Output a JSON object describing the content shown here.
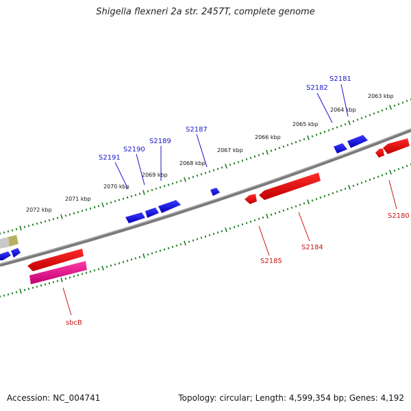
{
  "title": "Shigella flexneri 2a str. 2457T, complete genome",
  "footer": {
    "accession": "Accession: NC_004741",
    "stats": "Topology: circular; Length: 4,599,354 bp; Genes: 4,192"
  },
  "colors": {
    "plus_strand_gene": "#1010e0",
    "minus_strand_gene": "#e01010",
    "highlight_gene": "#e0108c",
    "tick_marks": "#1e7a1e",
    "backbone": "#7a7a7a"
  },
  "scale_labels": [
    "2072 kbp",
    "2071 kbp",
    "2070 kbp",
    "2069 kbp",
    "2068 kbp",
    "2067 kbp",
    "2066 kbp",
    "2065 kbp",
    "2064 kbp",
    "2063 kbp"
  ],
  "plus_genes": [
    "S2191",
    "S2190",
    "S2189",
    "S2187",
    "S2182",
    "S2181"
  ],
  "minus_genes": [
    "sbcB",
    "S2185",
    "S2184",
    "S2180"
  ]
}
